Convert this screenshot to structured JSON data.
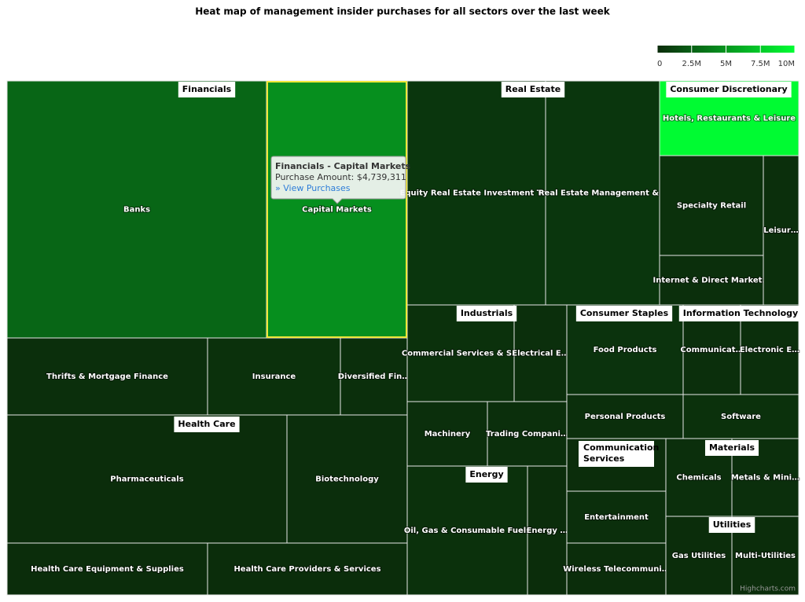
{
  "chart_data": {
    "type": "treemap",
    "title": "Heat map of management insider purchases for all sectors over the last week",
    "clim": [
      0,
      10000000
    ],
    "cticks": [
      0,
      {
        "value": 2500000,
        "label": "2.5M"
      },
      {
        "value": 5000000,
        "label": "5M"
      },
      {
        "value": 7500000,
        "label": "7.5M"
      },
      {
        "value": 10000000,
        "label": "10M"
      }
    ],
    "colors": [
      "#0b2b0b",
      "#00ff33"
    ],
    "sectors": [
      {
        "name": "Financials",
        "leaves": [
          {
            "name": "Banks",
            "value": 2800000
          },
          {
            "name": "Capital Markets",
            "value": 4739311
          },
          {
            "name": "Thrifts & Mortgage Finance",
            "value": 200000
          },
          {
            "name": "Insurance",
            "value": 300000
          },
          {
            "name": "Diversified Fin…",
            "value": 200000
          }
        ]
      },
      {
        "name": "Health Care",
        "leaves": [
          {
            "name": "Pharmaceuticals",
            "value": 100000
          },
          {
            "name": "Biotechnology",
            "value": 150000
          },
          {
            "name": "Health Care Equipment & Supplies",
            "value": 100000
          },
          {
            "name": "Health Care Providers & Services",
            "value": 100000
          }
        ]
      },
      {
        "name": "Real Estate",
        "leaves": [
          {
            "name": "Equity Real Estate Investment Tr…",
            "value": 500000
          },
          {
            "name": "Real Estate Management &…",
            "value": 500000
          }
        ]
      },
      {
        "name": "Consumer Discretionary",
        "leaves": [
          {
            "name": "Hotels, Restaurants & Leisure",
            "value": 9800000
          },
          {
            "name": "Specialty Retail",
            "value": 300000
          },
          {
            "name": "Internet & Direct Market…",
            "value": 200000
          },
          {
            "name": "Leisur…",
            "value": 200000
          }
        ]
      },
      {
        "name": "Industrials",
        "leaves": [
          {
            "name": "Commercial Services & S…",
            "value": 300000
          },
          {
            "name": "Electrical E…",
            "value": 200000
          },
          {
            "name": "Machinery",
            "value": 200000
          },
          {
            "name": "Trading Compani…",
            "value": 200000
          }
        ]
      },
      {
        "name": "Energy",
        "leaves": [
          {
            "name": "Oil, Gas & Consumable Fuels",
            "value": 300000
          },
          {
            "name": "Energy …",
            "value": 100000
          }
        ]
      },
      {
        "name": "Consumer Staples",
        "leaves": [
          {
            "name": "Food Products",
            "value": 400000
          },
          {
            "name": "Personal Products",
            "value": 200000
          }
        ]
      },
      {
        "name": "Information Technology",
        "leaves": [
          {
            "name": "Communicat…",
            "value": 200000
          },
          {
            "name": "Electronic E…",
            "value": 200000
          },
          {
            "name": "Software",
            "value": 300000
          }
        ]
      },
      {
        "name": "Communication Services",
        "leaves": [
          {
            "name": null,
            "value": 100000
          },
          {
            "name": "Entertainment",
            "value": 200000
          },
          {
            "name": "Wireless Telecommuni…",
            "value": 100000
          }
        ]
      },
      {
        "name": "Materials",
        "leaves": [
          {
            "name": "Chemicals",
            "value": 200000
          },
          {
            "name": "Metals & Mini…",
            "value": 200000
          }
        ]
      },
      {
        "name": "Utilities",
        "leaves": [
          {
            "name": "Gas Utilities",
            "value": 100000
          },
          {
            "name": "Multi-Utilities",
            "value": 100000
          }
        ]
      }
    ],
    "tooltip": {
      "title": "Financials - Capital Markets",
      "text": "Purchase Amount: $4,739,311",
      "link": "» View Purchases"
    },
    "credits": "Highcharts.com"
  }
}
